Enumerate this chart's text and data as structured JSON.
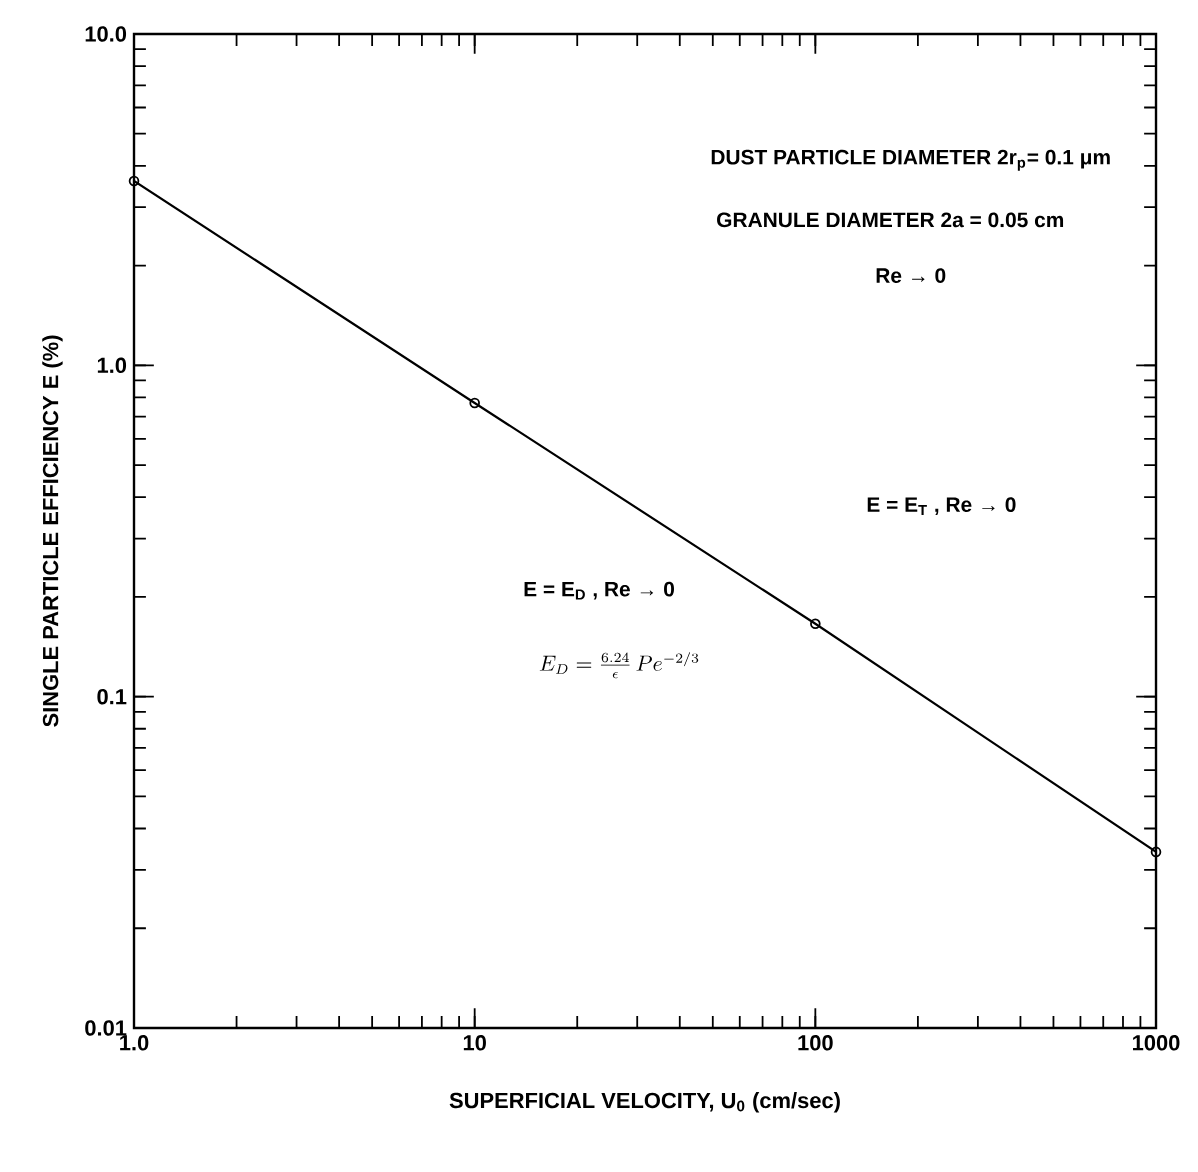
{
  "chart_data": {
    "type": "line",
    "xlabel": "SUPERFICIAL VELOCITY, U$_{0}$ (cm/sec)",
    "ylabel": "SINGLE PARTICLE EFFICIENCY E (%)",
    "x": [
      1,
      10,
      100,
      1000
    ],
    "series": [
      {
        "color": "#000000",
        "values": [
          3.6,
          0.77,
          0.166,
          0.034
        ]
      }
    ],
    "log": "xy",
    "xlim": [
      1,
      1000
    ],
    "ylim": [
      0.01,
      10
    ],
    "xticks": [
      {
        "value": 1,
        "label": "1.0"
      },
      10,
      100,
      1000
    ],
    "yticks": [
      {
        "value": 0.01,
        "label": "0.01"
      },
      {
        "value": 0.1,
        "label": "0.1"
      },
      {
        "value": 1,
        "label": "1.0"
      },
      {
        "value": 10,
        "label": "10.0"
      }
    ],
    "marker": "circle",
    "line_style": "solid",
    "grid": false,
    "annotations": [
      "DUST PARTICLE DIAMETER 2r$_{p}$= 0.1 μm",
      "GRANULE DIAMETER 2a = 0.05 cm",
      "Re → 0",
      "E = E$_{T}$ , Re → 0",
      "E = E$_{D}$ , Re → 0",
      "E_{D} = \\frac{6.24}{\\epsilon}\\, Pe^{-2/3}"
    ]
  }
}
